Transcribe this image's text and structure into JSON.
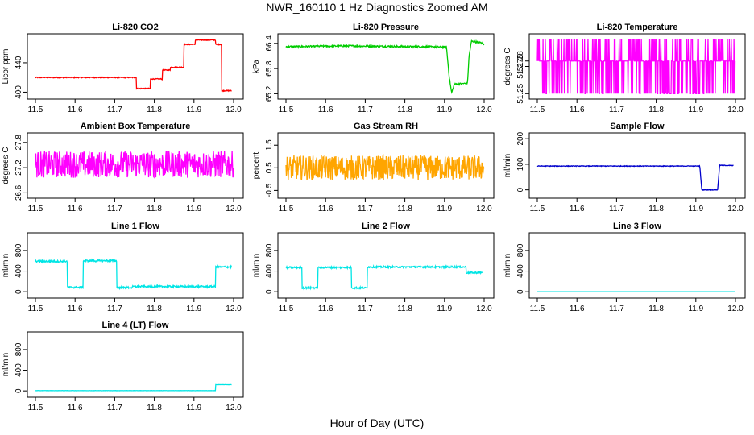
{
  "figure": {
    "title": "NWR_160110  1 Hz Diagnostics Zoomed AM",
    "xlabel": "Hour of Day (UTC)"
  },
  "chart_data": [
    {
      "type": "line",
      "title": "Li-820 CO2",
      "ylabel": "Licor ppm",
      "color": "#ff0000",
      "xlim": [
        11.5,
        12.0
      ],
      "ylim": [
        395,
        475
      ],
      "yticks": [
        400,
        440
      ],
      "xticks": [
        11.5,
        11.6,
        11.7,
        11.8,
        11.9,
        12.0
      ],
      "noise": 0.6,
      "series": [
        {
          "x": [
            11.5,
            11.755,
            11.755,
            11.79,
            11.79,
            11.82,
            11.82,
            11.84,
            11.84,
            11.875,
            11.875,
            11.903,
            11.903,
            11.955,
            11.955,
            11.97,
            11.97,
            11.995
          ],
          "y": [
            420,
            420,
            405,
            405,
            418,
            418,
            430,
            430,
            434,
            434,
            465,
            465,
            471,
            471,
            465,
            465,
            402,
            402
          ]
        }
      ]
    },
    {
      "type": "line",
      "title": "Li-820 Pressure",
      "ylabel": "kPa",
      "color": "#00cc00",
      "xlim": [
        11.5,
        12.0
      ],
      "ylim": [
        65.15,
        66.55
      ],
      "yticks": [
        65.2,
        65.8,
        66.4
      ],
      "xticks": [
        11.5,
        11.6,
        11.7,
        11.8,
        11.9,
        12.0
      ],
      "noise": 0.02,
      "series": [
        {
          "x": [
            11.5,
            11.65,
            11.75,
            11.85,
            11.905,
            11.912,
            11.918,
            11.925,
            11.958,
            11.962,
            11.968,
            11.99,
            12.0
          ],
          "y": [
            66.32,
            66.34,
            66.33,
            66.32,
            66.31,
            65.6,
            65.22,
            65.43,
            65.45,
            66.1,
            66.45,
            66.42,
            66.38
          ]
        }
      ]
    },
    {
      "type": "line",
      "title": "Li-820 Temperature",
      "ylabel": "degrees C",
      "color": "#ff00ff",
      "xlim": [
        11.5,
        12.0
      ],
      "ylim": [
        51.248,
        51.302
      ],
      "yticks": [
        51.25,
        51.275,
        51.28
      ],
      "xticks": [
        11.5,
        11.6,
        11.7,
        11.8,
        11.9,
        12.0
      ],
      "levels": [
        51.25,
        51.28,
        51.3
      ],
      "series": [
        {
          "x": [
            11.5,
            12.0
          ],
          "y": [
            51.28,
            51.28
          ]
        }
      ]
    },
    {
      "type": "line",
      "title": "Ambient Box Temperature",
      "ylabel": "degrees C",
      "color": "#ff00ff",
      "xlim": [
        11.5,
        12.0
      ],
      "ylim": [
        26.55,
        27.95
      ],
      "yticks": [
        26.6,
        27.2,
        27.8
      ],
      "xticks": [
        11.5,
        11.6,
        11.7,
        11.8,
        11.9,
        12.0
      ],
      "noise": 0.32,
      "series": [
        {
          "x": [
            11.5,
            12.0
          ],
          "y": [
            27.28,
            27.28
          ]
        }
      ]
    },
    {
      "type": "line",
      "title": "Gas Stream RH",
      "ylabel": "percent",
      "color": "#ffa500",
      "xlim": [
        11.5,
        12.0
      ],
      "ylim": [
        -0.7,
        1.9
      ],
      "yticks": [
        -0.5,
        0.5,
        1.5
      ],
      "xticks": [
        11.5,
        11.6,
        11.7,
        11.8,
        11.9,
        12.0
      ],
      "noise": 0.55,
      "series": [
        {
          "x": [
            11.5,
            12.0
          ],
          "y": [
            0.5,
            0.5
          ]
        }
      ]
    },
    {
      "type": "line",
      "title": "Sample Flow",
      "ylabel": "ml/min",
      "color": "#0000cc",
      "xlim": [
        11.5,
        12.0
      ],
      "ylim": [
        -20,
        210
      ],
      "yticks": [
        0,
        100,
        200
      ],
      "xticks": [
        11.5,
        11.6,
        11.7,
        11.8,
        11.9,
        12.0
      ],
      "noise": 1.2,
      "series": [
        {
          "x": [
            11.5,
            11.91,
            11.915,
            11.955,
            11.96,
            11.995
          ],
          "y": [
            93,
            93,
            0,
            0,
            96,
            95
          ]
        }
      ]
    },
    {
      "type": "line",
      "title": "Line 1 Flow",
      "ylabel": "ml/min",
      "color": "#00e5e5",
      "xlim": [
        11.5,
        12.0
      ],
      "ylim": [
        -60,
        1080
      ],
      "yticks": [
        0,
        400,
        800
      ],
      "xticks": [
        11.5,
        11.6,
        11.7,
        11.8,
        11.9,
        12.0
      ],
      "noise": 18,
      "series": [
        {
          "x": [
            11.5,
            11.58,
            11.58,
            11.62,
            11.62,
            11.705,
            11.705,
            11.745,
            11.745,
            11.955,
            11.955,
            11.995
          ],
          "y": [
            590,
            590,
            85,
            85,
            600,
            600,
            80,
            80,
            100,
            100,
            480,
            480
          ]
        }
      ]
    },
    {
      "type": "line",
      "title": "Line 2 Flow",
      "ylabel": "ml/min",
      "color": "#00e5e5",
      "xlim": [
        11.5,
        12.0
      ],
      "ylim": [
        -60,
        1080
      ],
      "yticks": [
        0,
        400,
        800
      ],
      "xticks": [
        11.5,
        11.6,
        11.7,
        11.8,
        11.9,
        12.0
      ],
      "noise": 16,
      "series": [
        {
          "x": [
            11.5,
            11.54,
            11.54,
            11.58,
            11.58,
            11.665,
            11.665,
            11.705,
            11.705,
            11.955,
            11.955,
            11.995
          ],
          "y": [
            470,
            470,
            75,
            75,
            470,
            470,
            75,
            75,
            480,
            480,
            370,
            370
          ]
        }
      ]
    },
    {
      "type": "line",
      "title": "Line 3 Flow",
      "ylabel": "ml/min",
      "color": "#00e5e5",
      "xlim": [
        11.5,
        12.0
      ],
      "ylim": [
        -60,
        1080
      ],
      "yticks": [
        0,
        400,
        800
      ],
      "xticks": [
        11.5,
        11.6,
        11.7,
        11.8,
        11.9,
        12.0
      ],
      "noise": 0,
      "series": [
        {
          "x": [
            11.5,
            12.0
          ],
          "y": [
            0,
            0
          ]
        }
      ]
    },
    {
      "type": "line",
      "title": "Line 4 (LT) Flow",
      "ylabel": "ml/min",
      "color": "#00e5e5",
      "xlim": [
        11.5,
        12.0
      ],
      "ylim": [
        -60,
        1080
      ],
      "yticks": [
        0,
        400,
        800
      ],
      "xticks": [
        11.5,
        11.6,
        11.7,
        11.8,
        11.9,
        12.0
      ],
      "noise": 2,
      "series": [
        {
          "x": [
            11.5,
            11.955,
            11.955,
            11.995
          ],
          "y": [
            5,
            5,
            120,
            120
          ]
        }
      ]
    }
  ]
}
